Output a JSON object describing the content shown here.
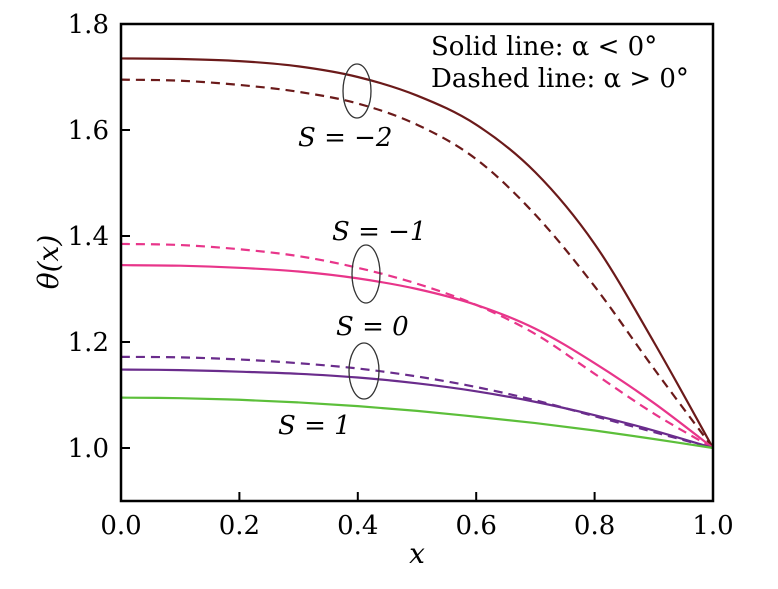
{
  "chart_data": {
    "type": "line",
    "xlabel": "x",
    "ylabel": "θ(x)",
    "xlim": [
      0.0,
      1.0
    ],
    "ylim": [
      0.9,
      1.8
    ],
    "xticks": [
      0.0,
      0.2,
      0.4,
      0.6,
      0.8,
      1.0
    ],
    "xtick_labels": [
      "0.0",
      "0.2",
      "0.4",
      "0.6",
      "0.8",
      "1.0"
    ],
    "yticks": [
      1.0,
      1.2,
      1.4,
      1.6,
      1.8
    ],
    "ytick_labels": [
      "1.0",
      "1.2",
      "1.4",
      "1.6",
      "1.8"
    ],
    "grid": false,
    "legend_text": {
      "solid": "Solid line: α < 0°",
      "dashed": "Dashed line: α > 0°"
    },
    "curve_labels": {
      "s_neg2": "S = −2",
      "s_neg1": "S = −1",
      "s_0": "S = 0",
      "s_1": "S = 1"
    },
    "series": [
      {
        "style": "solid",
        "color": "#6b1a1a",
        "x": [
          0.0,
          0.1,
          0.2,
          0.3,
          0.4,
          0.5,
          0.6,
          0.7,
          0.8,
          0.9,
          1.0
        ],
        "values": [
          1.735,
          1.734,
          1.73,
          1.72,
          1.7,
          1.665,
          1.61,
          1.52,
          1.385,
          1.2,
          1.0
        ]
      },
      {
        "style": "dashed",
        "color": "#6b1a1a",
        "x": [
          0.0,
          0.1,
          0.2,
          0.3,
          0.4,
          0.5,
          0.6,
          0.7,
          0.8,
          0.9,
          1.0
        ],
        "values": [
          1.695,
          1.693,
          1.685,
          1.672,
          1.65,
          1.61,
          1.545,
          1.44,
          1.305,
          1.15,
          1.0
        ]
      },
      {
        "style": "solid",
        "color": "#e8358a",
        "x": [
          0.0,
          0.1,
          0.2,
          0.3,
          0.4,
          0.5,
          0.6,
          0.7,
          0.8,
          0.9,
          1.0
        ],
        "values": [
          1.345,
          1.344,
          1.34,
          1.333,
          1.32,
          1.3,
          1.27,
          1.225,
          1.16,
          1.085,
          1.0
        ]
      },
      {
        "style": "dashed",
        "color": "#e8358a",
        "x": [
          0.0,
          0.1,
          0.2,
          0.3,
          0.4,
          0.5,
          0.6,
          0.7,
          0.8,
          0.9,
          1.0
        ],
        "values": [
          1.385,
          1.383,
          1.375,
          1.362,
          1.34,
          1.31,
          1.27,
          1.215,
          1.14,
          1.065,
          1.0
        ]
      },
      {
        "style": "solid",
        "color": "#6a2c8c",
        "x": [
          0.0,
          0.1,
          0.2,
          0.3,
          0.4,
          0.5,
          0.6,
          0.7,
          0.8,
          0.9,
          1.0
        ],
        "values": [
          1.148,
          1.147,
          1.144,
          1.14,
          1.133,
          1.122,
          1.107,
          1.087,
          1.062,
          1.033,
          1.0
        ]
      },
      {
        "style": "dashed",
        "color": "#6a2c8c",
        "x": [
          0.0,
          0.1,
          0.2,
          0.3,
          0.4,
          0.5,
          0.6,
          0.7,
          0.8,
          0.9,
          1.0
        ],
        "values": [
          1.172,
          1.171,
          1.167,
          1.16,
          1.15,
          1.135,
          1.115,
          1.09,
          1.06,
          1.03,
          1.0
        ]
      },
      {
        "style": "solid",
        "color": "#5cbf3a",
        "x": [
          0.0,
          0.1,
          0.2,
          0.3,
          0.4,
          0.5,
          0.6,
          0.7,
          0.8,
          0.9,
          1.0
        ],
        "values": [
          1.095,
          1.094,
          1.091,
          1.086,
          1.079,
          1.07,
          1.059,
          1.047,
          1.033,
          1.017,
          1.0
        ]
      }
    ]
  }
}
